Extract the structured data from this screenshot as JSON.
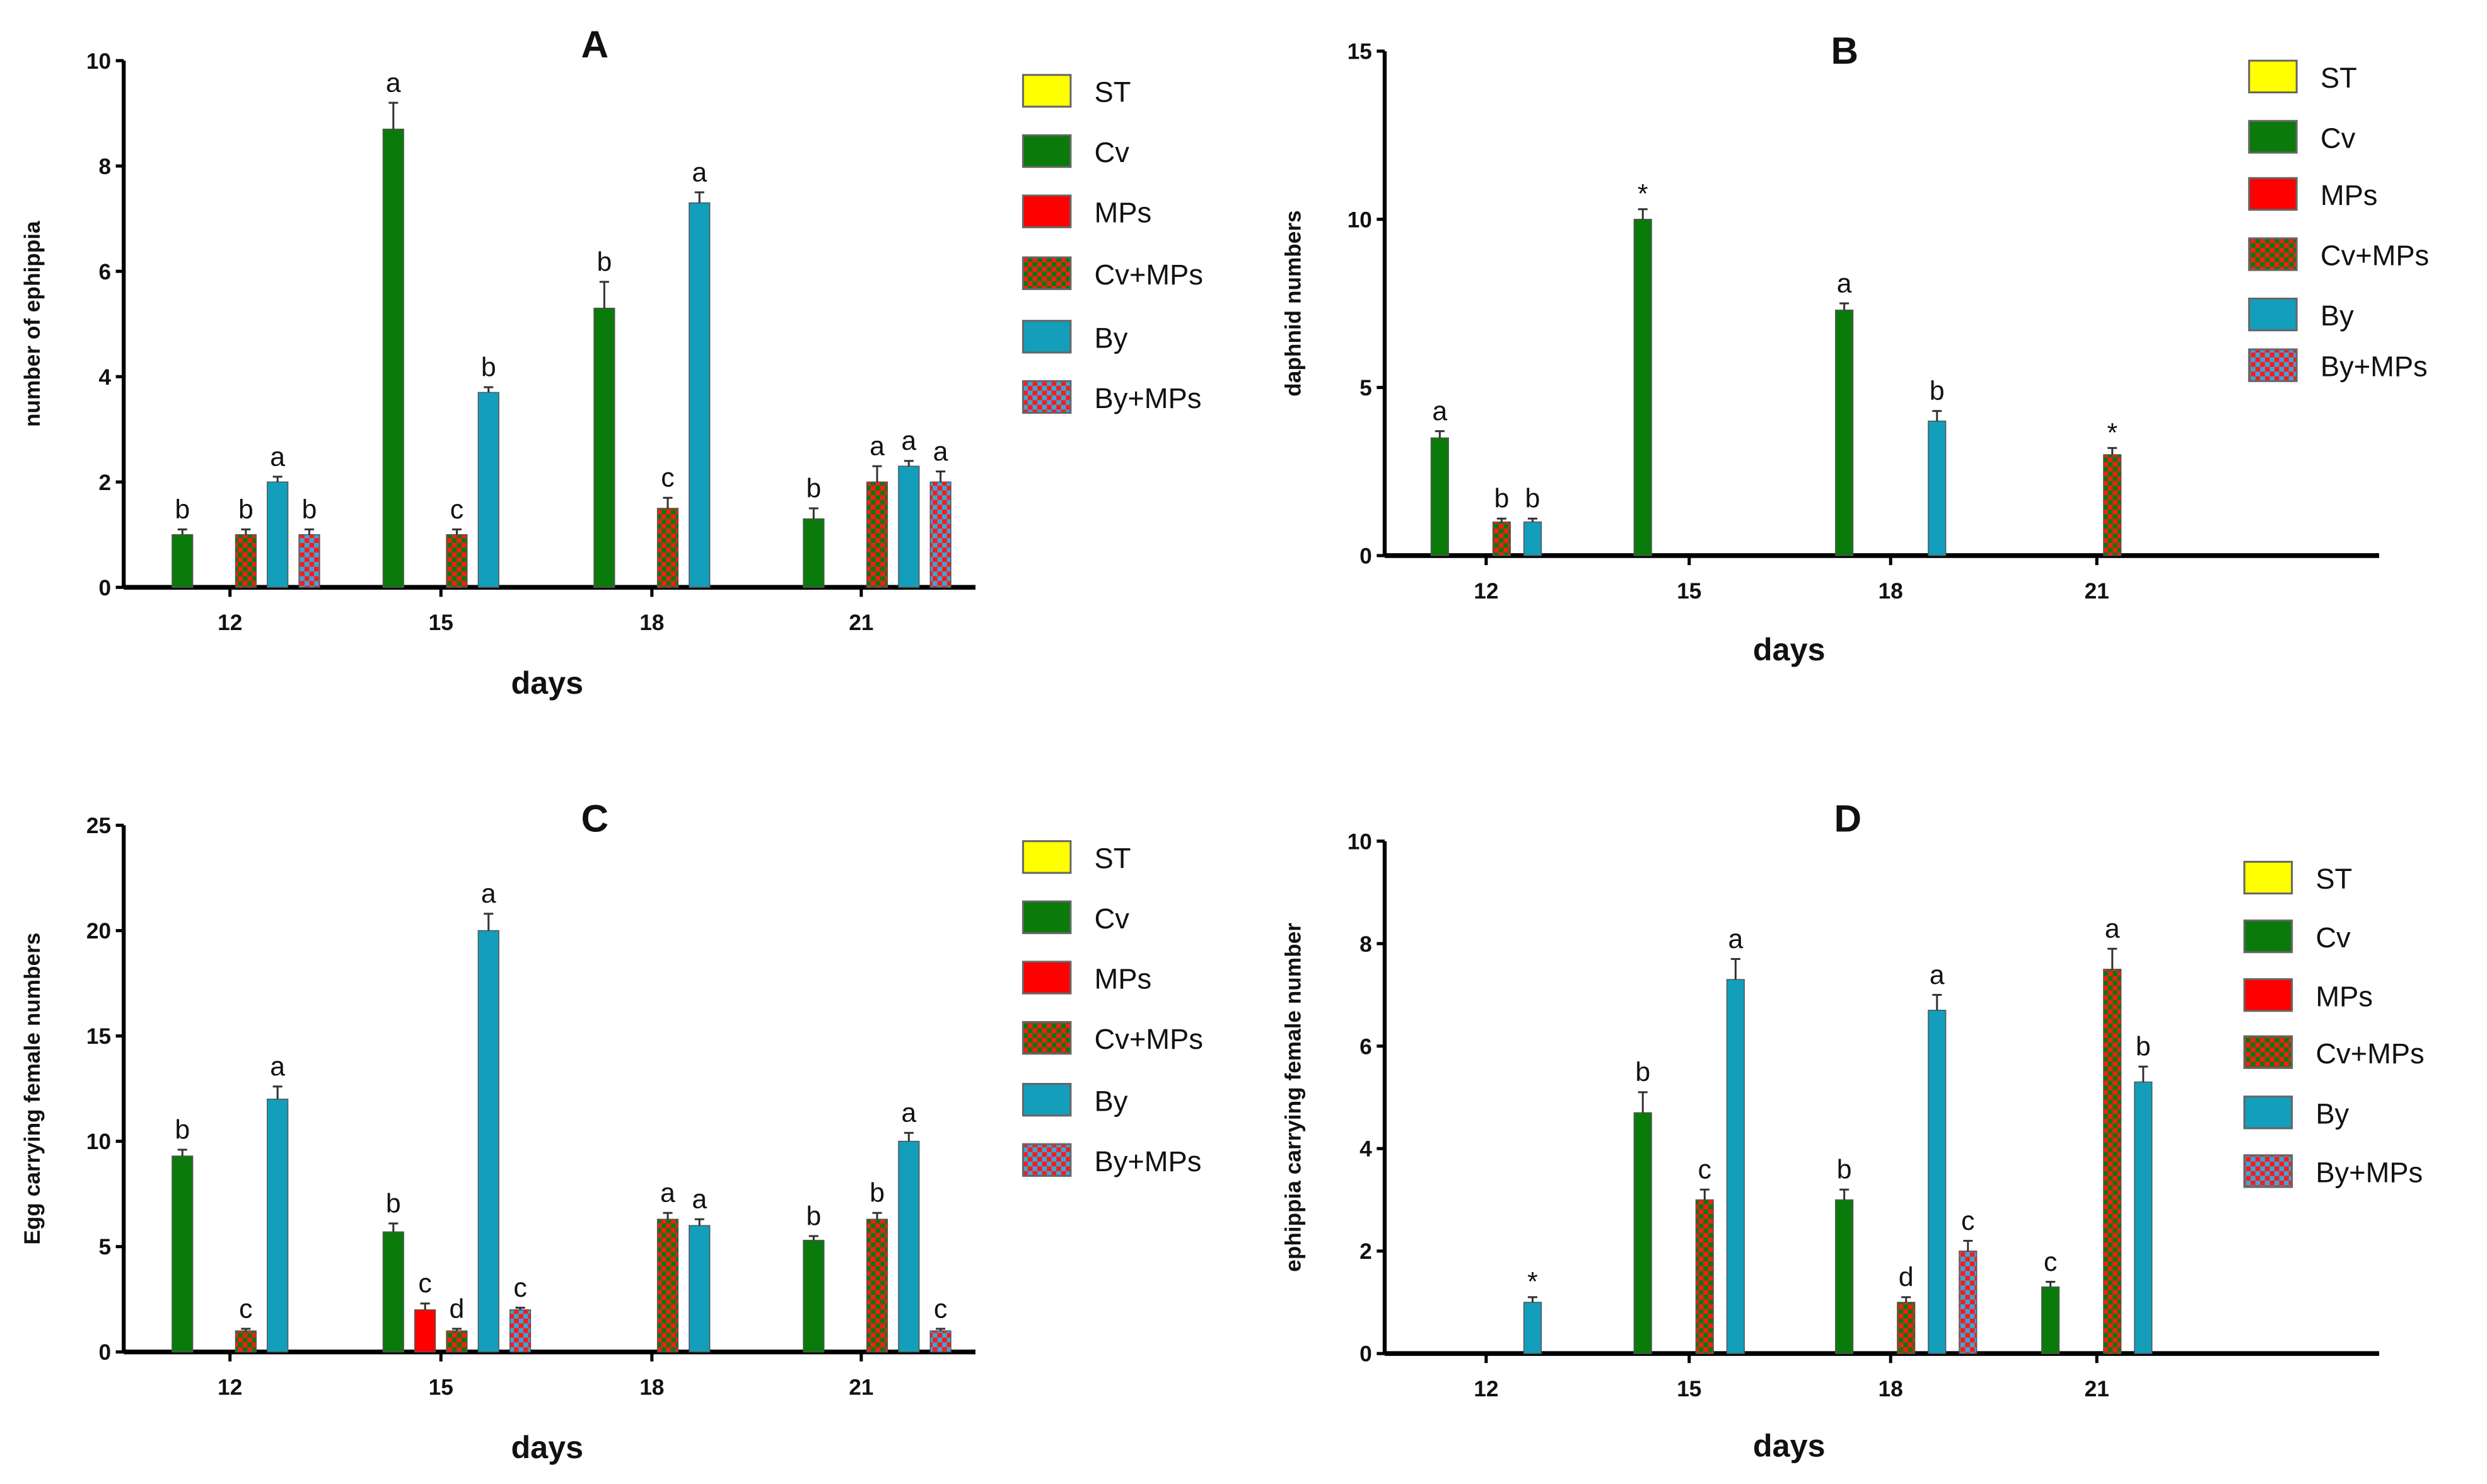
{
  "legend_groups": [
    "ST",
    "Cv",
    "MPs",
    "Cv+MPs",
    "By",
    "By+MPs"
  ],
  "colors": {
    "ST": "#ffff00",
    "Cv": "#0a7a0a",
    "MPs": "#ff0000",
    "Cv+MPs": "checker-green-red",
    "By": "#139ebb",
    "By+MPs": "checker-red-blue"
  },
  "chart_data": [
    {
      "type": "bar",
      "title": "A",
      "xlabel": "days",
      "ylabel": "number of ephippia",
      "categories": [
        "12",
        "15",
        "18",
        "21"
      ],
      "ylim": [
        0,
        10
      ],
      "yticks": [
        0,
        2,
        4,
        6,
        8,
        10
      ],
      "legend": [
        "ST",
        "Cv",
        "MPs",
        "Cv+MPs",
        "By",
        "By+MPs"
      ],
      "legend_placement": "right",
      "series": [
        {
          "name": "ST",
          "values": [
            null,
            null,
            null,
            null
          ],
          "errors": [
            null,
            null,
            null,
            null
          ],
          "letters": [
            null,
            null,
            null,
            null
          ]
        },
        {
          "name": "Cv",
          "values": [
            1.0,
            8.7,
            5.3,
            1.3
          ],
          "errors": [
            0.1,
            0.5,
            0.5,
            0.2
          ],
          "letters": [
            "b",
            "a",
            "b",
            "b"
          ]
        },
        {
          "name": "MPs",
          "values": [
            null,
            null,
            null,
            null
          ],
          "errors": [
            null,
            null,
            null,
            null
          ],
          "letters": [
            null,
            null,
            null,
            null
          ]
        },
        {
          "name": "Cv+MPs",
          "values": [
            1.0,
            1.0,
            1.5,
            2.0
          ],
          "errors": [
            0.1,
            0.1,
            0.2,
            0.3
          ],
          "letters": [
            "b",
            "c",
            "c",
            "a"
          ]
        },
        {
          "name": "By",
          "values": [
            2.0,
            3.7,
            7.3,
            2.3
          ],
          "errors": [
            0.1,
            0.1,
            0.2,
            0.1
          ],
          "letters": [
            "a",
            "b",
            "a",
            "a"
          ]
        },
        {
          "name": "By+MPs",
          "values": [
            1.0,
            null,
            null,
            2.0
          ],
          "errors": [
            0.1,
            null,
            null,
            0.2
          ],
          "letters": [
            "b",
            null,
            null,
            "a"
          ]
        }
      ]
    },
    {
      "type": "bar",
      "title": "B",
      "xlabel": "days",
      "ylabel": "daphnid numbers",
      "categories": [
        "12",
        "15",
        "18",
        "21"
      ],
      "ylim": [
        0,
        15
      ],
      "yticks": [
        0,
        5,
        10,
        15
      ],
      "legend": [
        "ST",
        "Cv",
        "MPs",
        "Cv+MPs",
        "By",
        "By+MPs"
      ],
      "legend_placement": "right",
      "series": [
        {
          "name": "ST",
          "values": [
            null,
            null,
            null,
            null
          ],
          "errors": [
            null,
            null,
            null,
            null
          ],
          "letters": [
            null,
            null,
            null,
            null
          ]
        },
        {
          "name": "Cv",
          "values": [
            3.5,
            10.0,
            7.3,
            null
          ],
          "errors": [
            0.2,
            0.3,
            0.2,
            null
          ],
          "letters": [
            "a",
            "*",
            "a",
            null
          ]
        },
        {
          "name": "MPs",
          "values": [
            null,
            null,
            null,
            null
          ],
          "errors": [
            null,
            null,
            null,
            null
          ],
          "letters": [
            null,
            null,
            null,
            null
          ]
        },
        {
          "name": "Cv+MPs",
          "values": [
            1.0,
            null,
            null,
            3.0
          ],
          "errors": [
            0.1,
            null,
            null,
            0.2
          ],
          "letters": [
            "b",
            null,
            null,
            "*"
          ]
        },
        {
          "name": "By",
          "values": [
            1.0,
            null,
            4.0,
            null
          ],
          "errors": [
            0.1,
            null,
            0.3,
            null
          ],
          "letters": [
            "b",
            null,
            "b",
            null
          ]
        },
        {
          "name": "By+MPs",
          "values": [
            null,
            null,
            null,
            null
          ],
          "errors": [
            null,
            null,
            null,
            null
          ],
          "letters": [
            null,
            null,
            null,
            null
          ]
        }
      ]
    },
    {
      "type": "bar",
      "title": "C",
      "xlabel": "days",
      "ylabel": "Egg carrying female numbers",
      "categories": [
        "12",
        "15",
        "18",
        "21"
      ],
      "ylim": [
        0,
        25
      ],
      "yticks": [
        0,
        5,
        10,
        15,
        20,
        25
      ],
      "legend": [
        "ST",
        "Cv",
        "MPs",
        "Cv+MPs",
        "By",
        "By+MPs"
      ],
      "legend_placement": "right",
      "series": [
        {
          "name": "ST",
          "values": [
            null,
            null,
            null,
            null
          ],
          "errors": [
            null,
            null,
            null,
            null
          ],
          "letters": [
            null,
            null,
            null,
            null
          ]
        },
        {
          "name": "Cv",
          "values": [
            9.3,
            5.7,
            null,
            5.3
          ],
          "errors": [
            0.3,
            0.4,
            null,
            0.2
          ],
          "letters": [
            "b",
            "b",
            null,
            "b"
          ]
        },
        {
          "name": "MPs",
          "values": [
            null,
            2.0,
            null,
            null
          ],
          "errors": [
            null,
            0.3,
            null,
            null
          ],
          "letters": [
            null,
            "c",
            null,
            null
          ]
        },
        {
          "name": "Cv+MPs",
          "values": [
            1.0,
            1.0,
            6.3,
            6.3
          ],
          "errors": [
            0.1,
            0.1,
            0.3,
            0.3
          ],
          "letters": [
            "c",
            "d",
            "a",
            "b"
          ]
        },
        {
          "name": "By",
          "values": [
            12.0,
            20.0,
            6.0,
            10.0
          ],
          "errors": [
            0.6,
            0.8,
            0.3,
            0.4
          ],
          "letters": [
            "a",
            "a",
            "a",
            "a"
          ]
        },
        {
          "name": "By+MPs",
          "values": [
            null,
            2.0,
            null,
            1.0
          ],
          "errors": [
            null,
            0.1,
            null,
            0.1
          ],
          "letters": [
            null,
            "c",
            null,
            "c"
          ]
        }
      ]
    },
    {
      "type": "bar",
      "title": "D",
      "xlabel": "days",
      "ylabel": "ephippia carrying female number",
      "categories": [
        "12",
        "15",
        "18",
        "21"
      ],
      "ylim": [
        0,
        10
      ],
      "yticks": [
        0,
        2,
        4,
        6,
        8,
        10
      ],
      "legend": [
        "ST",
        "Cv",
        "MPs",
        "Cv+MPs",
        "By",
        "By+MPs"
      ],
      "legend_placement": "right",
      "series": [
        {
          "name": "ST",
          "values": [
            null,
            null,
            null,
            null
          ],
          "errors": [
            null,
            null,
            null,
            null
          ],
          "letters": [
            null,
            null,
            null,
            null
          ]
        },
        {
          "name": "Cv",
          "values": [
            null,
            4.7,
            3.0,
            1.3
          ],
          "errors": [
            null,
            0.4,
            0.2,
            0.1
          ],
          "letters": [
            null,
            "b",
            "b",
            "c"
          ]
        },
        {
          "name": "MPs",
          "values": [
            null,
            null,
            null,
            null
          ],
          "errors": [
            null,
            null,
            null,
            null
          ],
          "letters": [
            null,
            null,
            null,
            null
          ]
        },
        {
          "name": "Cv+MPs",
          "values": [
            null,
            3.0,
            1.0,
            7.5
          ],
          "errors": [
            null,
            0.2,
            0.1,
            0.4
          ],
          "letters": [
            null,
            "c",
            "d",
            "a"
          ]
        },
        {
          "name": "By",
          "values": [
            1.0,
            7.3,
            6.7,
            5.3
          ],
          "errors": [
            0.1,
            0.4,
            0.3,
            0.3
          ],
          "letters": [
            "*",
            "a",
            "a",
            "b"
          ]
        },
        {
          "name": "By+MPs",
          "values": [
            null,
            null,
            2.0,
            null
          ],
          "errors": [
            null,
            null,
            0.2,
            null
          ],
          "letters": [
            null,
            null,
            "c",
            null
          ]
        }
      ]
    }
  ]
}
